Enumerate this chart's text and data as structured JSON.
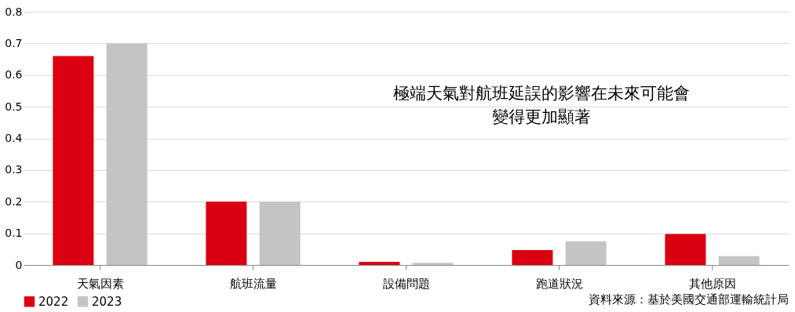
{
  "chart_data": {
    "type": "bar",
    "categories": [
      "天氣因素",
      "航班流量",
      "設備問題",
      "跑道狀況",
      "其他原因"
    ],
    "series": [
      {
        "name": "2022",
        "color": "#db0011",
        "values": [
          0.66,
          0.2,
          0.01,
          0.047,
          0.098
        ]
      },
      {
        "name": "2023",
        "color": "#c4c4c4",
        "values": [
          0.7,
          0.2,
          0.007,
          0.075,
          0.028
        ]
      }
    ],
    "ylim": [
      0,
      0.8
    ],
    "yticks": [
      0,
      0.1,
      0.2,
      0.3,
      0.4,
      0.5,
      0.6,
      0.7,
      0.8
    ],
    "grid": "y",
    "legend": "bottom",
    "annotations": [
      "極端天氣對航班延誤的影響在未來可能會變得更加顯著",
      "資料來源：基於美國交通部運輸統計局"
    ]
  }
}
